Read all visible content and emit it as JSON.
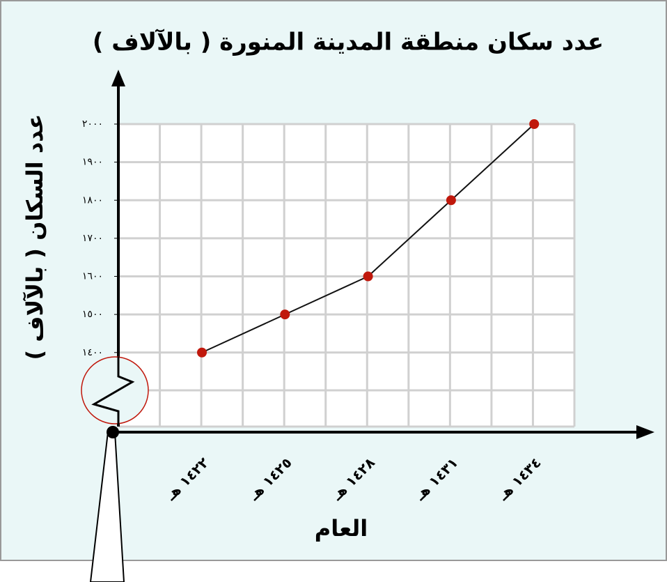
{
  "chart_data": {
    "type": "line",
    "title": "عدد سكان منطقة المدينة المنورة ( بالآلاف )",
    "y_label": "عدد السكان ( بالآلاف )",
    "x_label": "العام",
    "categories": [
      "١٤٢٢ هـ",
      "١٤٢٥ هـ",
      "١٤٢٨ هـ",
      "١٤٣١ هـ",
      "١٤٣٤ هـ"
    ],
    "values": [
      1400,
      1500,
      1600,
      1800,
      2000
    ],
    "color": "#111111",
    "marker_color": "#c0180c",
    "ylim": [
      1200,
      2000
    ],
    "yticks": [
      {
        "value": 1400,
        "label": "١٤٠٠"
      },
      {
        "value": 1500,
        "label": "١٥٠٠"
      },
      {
        "value": 1600,
        "label": "١٦٠٠"
      },
      {
        "value": 1700,
        "label": "١٧٠٠"
      },
      {
        "value": 1800,
        "label": "١٨٠٠"
      },
      {
        "value": 1900,
        "label": "١٩٠٠"
      },
      {
        "value": 2000,
        "label": "٢٠٠٠"
      }
    ],
    "grid": true
  }
}
